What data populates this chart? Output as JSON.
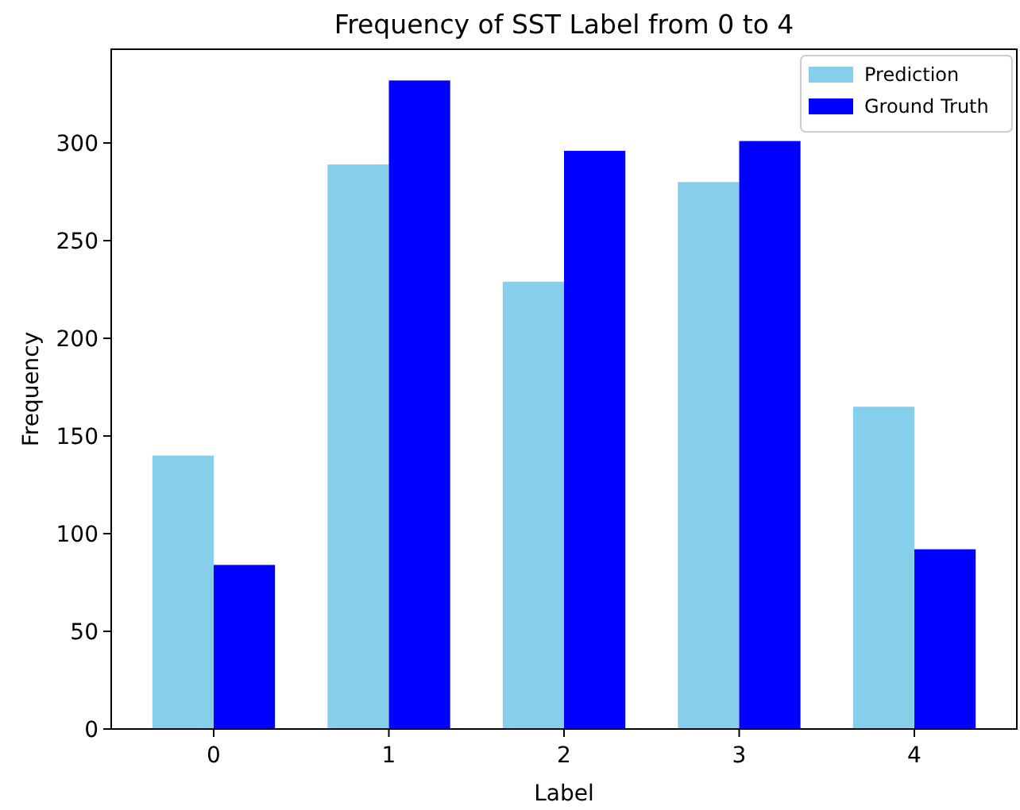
{
  "chart_data": {
    "type": "bar",
    "title": "Frequency of SST Label from 0 to 4",
    "xlabel": "Label",
    "ylabel": "Frequency",
    "categories": [
      "0",
      "1",
      "2",
      "3",
      "4"
    ],
    "series": [
      {
        "name": "Prediction",
        "color": "#87ceeb",
        "values": [
          140,
          289,
          229,
          280,
          165
        ]
      },
      {
        "name": "Ground Truth",
        "color": "#0000ff",
        "values": [
          84,
          332,
          296,
          301,
          92
        ]
      }
    ],
    "ylim": [
      0,
      348
    ],
    "yticks": [
      0,
      50,
      100,
      150,
      200,
      250,
      300
    ],
    "grid": false,
    "legend": "top right"
  }
}
